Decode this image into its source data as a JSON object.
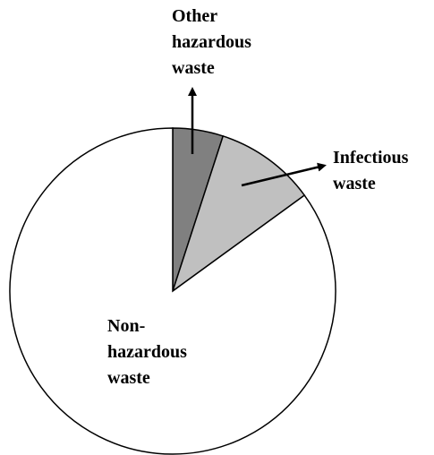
{
  "chart_data": {
    "type": "pie",
    "categories": [
      "Other hazardous waste",
      "Infectious waste",
      "Non-hazardous waste"
    ],
    "values": [
      5,
      10,
      85
    ],
    "colors": [
      "#808080",
      "#c0c0c0",
      "#ffffff"
    ]
  }
}
